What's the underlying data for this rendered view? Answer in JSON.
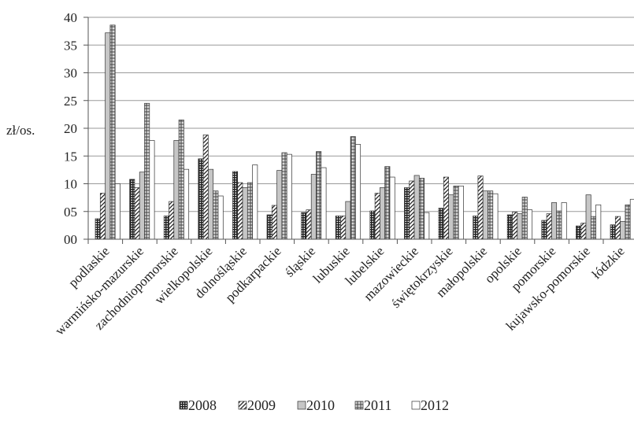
{
  "chart_data": {
    "type": "bar",
    "title": "",
    "xlabel": "",
    "ylabel": "zł/os.",
    "ylim": [
      0,
      40
    ],
    "yticks": [
      0,
      5,
      10,
      15,
      20,
      25,
      30,
      35,
      40
    ],
    "ytick_labels": [
      "00",
      "05",
      "10",
      "15",
      "20",
      "25",
      "30",
      "35",
      "40"
    ],
    "grid": true,
    "legend_position": "bottom",
    "categories": [
      "podlaskie",
      "warmińsko-mazurskie",
      "zachodniopomorskie",
      "wielkopolskie",
      "dolnośląskie",
      "podkarpackie",
      "śląskie",
      "lubuskie",
      "lubelskie",
      "mazowieckie",
      "świętokrzyskie",
      "małopolskie",
      "opolskie",
      "pomorskie",
      "kujawsko-pomorskie",
      "łódzkie"
    ],
    "series": [
      {
        "name": "2008",
        "values": [
          3.7,
          10.8,
          4.2,
          14.5,
          12.2,
          4.4,
          4.8,
          4.2,
          5.1,
          9.3,
          5.6,
          4.2,
          4.4,
          3.4,
          2.4,
          2.6
        ]
      },
      {
        "name": "2009",
        "values": [
          8.3,
          9.3,
          6.8,
          18.8,
          10.2,
          6.1,
          5.3,
          4.2,
          8.3,
          10.5,
          11.2,
          11.4,
          4.9,
          4.6,
          2.9,
          4.1
        ]
      },
      {
        "name": "2010",
        "values": [
          37.2,
          12.1,
          17.8,
          12.6,
          9.3,
          12.4,
          11.7,
          6.8,
          9.3,
          11.5,
          8.0,
          8.7,
          4.6,
          6.6,
          8.0,
          3.2
        ]
      },
      {
        "name": "2011",
        "values": [
          38.6,
          24.5,
          21.5,
          8.7,
          10.2,
          15.6,
          15.8,
          18.5,
          13.1,
          11.0,
          9.6,
          8.7,
          7.6,
          5.1,
          4.1,
          6.2
        ]
      },
      {
        "name": "2012",
        "values": [
          10.0,
          17.8,
          12.6,
          7.8,
          13.4,
          15.3,
          12.9,
          17.1,
          11.2,
          4.8,
          9.6,
          8.2,
          5.3,
          6.6,
          6.2,
          7.2
        ]
      }
    ]
  },
  "style": {
    "axis_color": "#555555",
    "grid_color": "#9a9a9a",
    "bar_stroke": "#333333"
  }
}
